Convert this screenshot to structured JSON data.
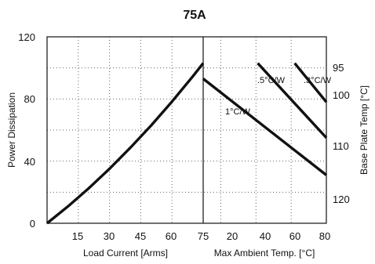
{
  "chart_data": {
    "type": "line",
    "title": "75A",
    "grid": true,
    "left_panel": {
      "xlabel": "Load Current [Arms]",
      "ylabel": "Power Dissipation",
      "x_ticks": [
        "15",
        "30",
        "45",
        "60",
        "75"
      ],
      "y_ticks": [
        "0",
        "40",
        "80",
        "120"
      ],
      "xlim": [
        0,
        75
      ],
      "ylim": [
        0,
        120
      ],
      "series": [
        {
          "x": [
            0,
            10,
            20,
            30,
            40,
            50,
            60,
            70,
            75
          ],
          "y": [
            0,
            10.8,
            22.5,
            35.1,
            48.6,
            63.0,
            78.3,
            94.5,
            103
          ]
        }
      ]
    },
    "right_panel": {
      "xlabel": "Max Ambient Temp. [°C]",
      "y2label": "Base Plate Temp [°C]",
      "x_ticks": [
        "20",
        "40",
        "60",
        "80"
      ],
      "y2_ticks": [
        "95",
        "100",
        "110",
        "120"
      ],
      "xlim": [
        10,
        80
      ],
      "y2lim": [
        125,
        85
      ],
      "series": [
        {
          "name": "1°C/W",
          "x": [
            10,
            80
          ],
          "y": [
            93,
            31
          ]
        },
        {
          "name": ".5°C/W",
          "x": [
            41,
            80
          ],
          "y": [
            103,
            55
          ]
        },
        {
          "name": ".3°C/W",
          "x": [
            62,
            80
          ],
          "y": [
            103,
            78
          ]
        }
      ]
    }
  }
}
